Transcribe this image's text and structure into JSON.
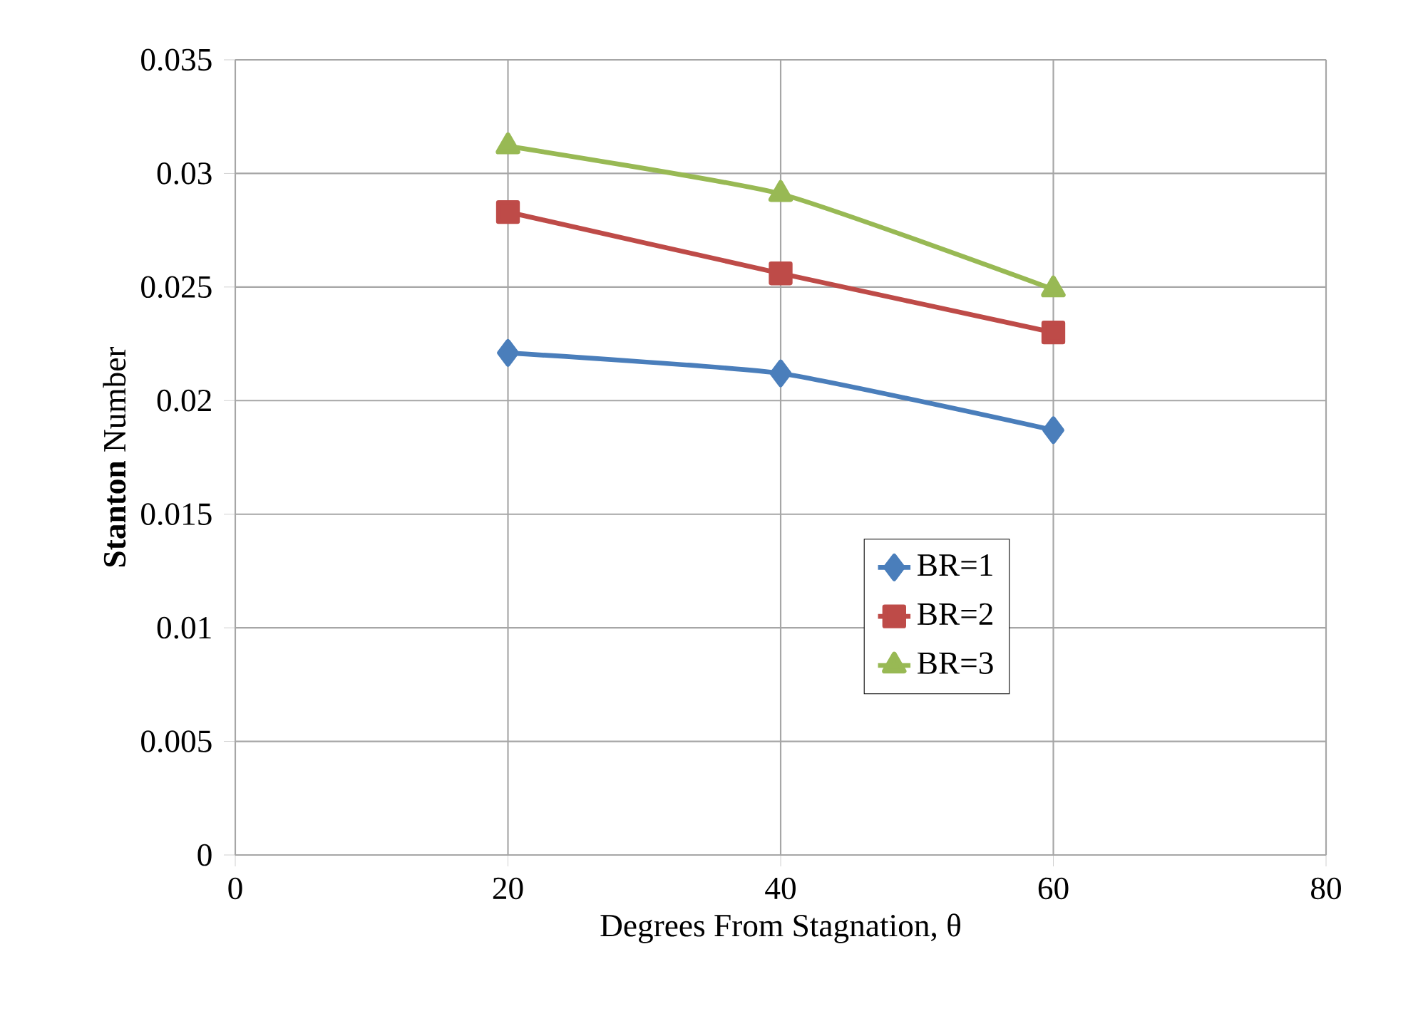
{
  "chart_data": {
    "type": "line",
    "xlabel": "Degrees From Stagnation, θ",
    "ylabel": "**Stanton** Number",
    "x": [
      20,
      40,
      60
    ],
    "xlim": [
      0,
      80
    ],
    "xticks": [
      0,
      20,
      40,
      60,
      80
    ],
    "ylim": [
      0,
      0.035
    ],
    "yticks": [
      0,
      0.005,
      0.01,
      0.015,
      0.02,
      0.025,
      0.03,
      0.035
    ],
    "grid": true,
    "legend": "right",
    "series": [
      {
        "name": "BR=1",
        "color": "#4a7ebb",
        "marker": "diamond",
        "values": [
          0.0221,
          0.0212,
          0.0187
        ]
      },
      {
        "name": "BR=2",
        "color": "#be4b48",
        "marker": "square",
        "values": [
          0.0283,
          0.0256,
          0.023
        ]
      },
      {
        "name": "BR=3",
        "color": "#98b954",
        "marker": "triangle",
        "values": [
          0.0312,
          0.0291,
          0.0249
        ]
      }
    ]
  }
}
